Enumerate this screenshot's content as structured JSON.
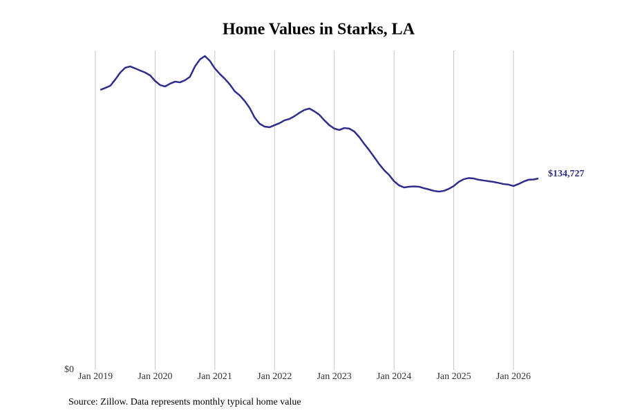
{
  "chart_data": {
    "type": "line",
    "title": "Home Values in Starks, LA",
    "source": "Source: Zillow. Data represents monthly typical home value",
    "x": [
      2019.083,
      2019.167,
      2019.25,
      2019.333,
      2019.417,
      2019.5,
      2019.583,
      2019.667,
      2019.75,
      2019.833,
      2019.917,
      2020.0,
      2020.083,
      2020.167,
      2020.25,
      2020.333,
      2020.417,
      2020.5,
      2020.583,
      2020.667,
      2020.75,
      2020.833,
      2020.917,
      2021.0,
      2021.083,
      2021.167,
      2021.25,
      2021.333,
      2021.417,
      2021.5,
      2021.583,
      2021.667,
      2021.75,
      2021.833,
      2021.917,
      2022.0,
      2022.083,
      2022.167,
      2022.25,
      2022.333,
      2022.417,
      2022.5,
      2022.583,
      2022.667,
      2022.75,
      2022.833,
      2022.917,
      2023.0,
      2023.083,
      2023.167,
      2023.25,
      2023.333,
      2023.417,
      2023.5,
      2023.583,
      2023.667,
      2023.75,
      2023.833,
      2023.917,
      2024.0,
      2024.083,
      2024.167,
      2024.25,
      2024.333,
      2024.417,
      2024.5,
      2024.583,
      2024.667,
      2024.75,
      2024.833,
      2024.917,
      2025.0,
      2025.083,
      2025.167,
      2025.25,
      2025.333,
      2025.417,
      2025.5,
      2025.583,
      2025.667,
      2025.75,
      2025.833,
      2025.917,
      2026.0,
      2026.083,
      2026.167,
      2026.25,
      2026.333,
      2026.417
    ],
    "series": [
      {
        "color": "#2f2d8c",
        "values": [
          197000,
          198400,
          199900,
          204300,
          209200,
          212600,
          213500,
          212100,
          210600,
          209200,
          207200,
          203300,
          200400,
          199400,
          201400,
          202800,
          202300,
          203800,
          206200,
          213500,
          218400,
          220800,
          217400,
          212100,
          208200,
          204800,
          200900,
          196000,
          193100,
          189200,
          184300,
          177500,
          173200,
          171200,
          170700,
          172200,
          173600,
          175600,
          176600,
          178500,
          180900,
          182900,
          183900,
          181900,
          179500,
          175600,
          172200,
          169800,
          168800,
          170200,
          169800,
          167800,
          163900,
          159100,
          154700,
          149800,
          144900,
          140600,
          137200,
          132800,
          129900,
          128400,
          128900,
          129100,
          128900,
          127900,
          127000,
          126000,
          125500,
          126000,
          127400,
          129400,
          132300,
          134200,
          135000,
          134700,
          133800,
          133300,
          132800,
          132300,
          131600,
          130800,
          130400,
          129400,
          130800,
          132500,
          133800,
          134000,
          134727
        ],
        "value_labels": [
          null,
          null,
          null,
          null,
          null,
          null,
          null,
          null,
          null,
          null,
          null,
          null,
          null,
          null,
          null,
          null,
          null,
          null,
          null,
          null,
          null,
          null,
          null,
          null,
          null,
          null,
          null,
          null,
          null,
          null,
          null,
          null,
          null,
          null,
          null,
          null,
          null,
          null,
          null,
          null,
          null,
          null,
          null,
          null,
          null,
          null,
          null,
          null,
          null,
          null,
          null,
          null,
          null,
          null,
          null,
          null,
          null,
          null,
          null,
          null,
          null,
          null,
          null,
          null,
          null,
          null,
          null,
          null,
          null,
          null,
          null,
          null,
          null,
          null,
          null,
          null,
          null,
          null,
          null,
          null,
          null,
          null,
          null,
          null,
          null,
          null,
          null,
          null,
          "$134,727"
        ]
      }
    ],
    "xlim": [
      2018.56,
      2026.66
    ],
    "xticks": [
      {
        "value": 2019,
        "label": "Jan 2019"
      },
      {
        "value": 2020,
        "label": "Jan 2020"
      },
      {
        "value": 2021,
        "label": "Jan 2021"
      },
      {
        "value": 2022,
        "label": "Jan 2022"
      },
      {
        "value": 2023,
        "label": "Jan 2023"
      },
      {
        "value": 2024,
        "label": "Jan 2024"
      },
      {
        "value": 2025,
        "label": "Jan 2025"
      },
      {
        "value": 2026,
        "label": "Jan 2026"
      }
    ],
    "ylim": [
      0,
      224700
    ],
    "yticks": [
      {
        "value": 0,
        "label": "$0"
      }
    ],
    "grid": "x"
  }
}
